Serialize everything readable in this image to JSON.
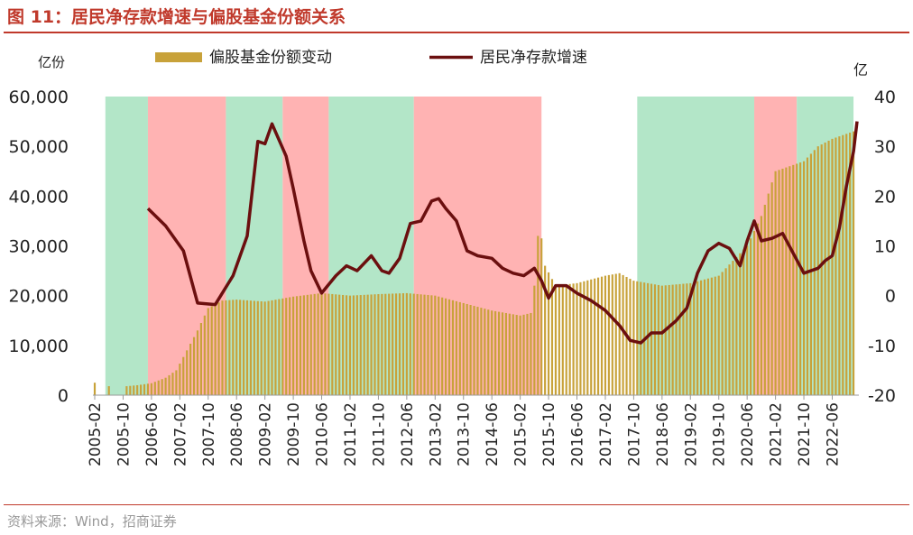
{
  "title": "图 11：居民净存款增速与偏股基金份额关系",
  "source": "资料来源：Wind，招商证券",
  "chart_data": {
    "type": "bar+line",
    "x_start": "2005-02",
    "x_end": "2023-01",
    "x_tick_labels": [
      "2005-02",
      "2005-10",
      "2006-06",
      "2007-02",
      "2007-10",
      "2008-06",
      "2009-02",
      "2009-10",
      "2010-06",
      "2011-02",
      "2011-10",
      "2012-06",
      "2013-02",
      "2013-10",
      "2014-06",
      "2015-02",
      "2015-10",
      "2016-06",
      "2017-02",
      "2017-10",
      "2018-06",
      "2019-02",
      "2019-10",
      "2020-06",
      "2021-02",
      "2021-10",
      "2022-06"
    ],
    "left_axis": {
      "label": "亿份",
      "ylim": [
        0,
        60000
      ],
      "ticks": [
        0,
        10000,
        20000,
        30000,
        40000,
        50000,
        60000
      ],
      "tick_labels": [
        "0",
        "10,000",
        "20,000",
        "30,000",
        "40,000",
        "50,000",
        "60,000"
      ]
    },
    "right_axis": {
      "label": "亿",
      "ylim": [
        -20,
        40
      ],
      "ticks": [
        -20,
        -10,
        0,
        10,
        20,
        30,
        40
      ],
      "tick_labels": [
        "-20",
        "-10",
        "0",
        "10",
        "20",
        "30",
        "40"
      ]
    },
    "legend": {
      "position": "top",
      "entries": [
        "偏股基金份额变动",
        "居民净存款增速"
      ]
    },
    "shaded_periods": [
      {
        "start": "2005-05",
        "end": "2006-05",
        "color": "#b3e6c8"
      },
      {
        "start": "2006-05",
        "end": "2008-03",
        "color": "#ffb3b3"
      },
      {
        "start": "2008-03",
        "end": "2009-07",
        "color": "#b3e6c8"
      },
      {
        "start": "2009-07",
        "end": "2010-08",
        "color": "#ffb3b3"
      },
      {
        "start": "2010-08",
        "end": "2012-08",
        "color": "#b3e6c8"
      },
      {
        "start": "2012-08",
        "end": "2015-08",
        "color": "#ffb3b3"
      },
      {
        "start": "2017-11",
        "end": "2020-08",
        "color": "#b3e6c8"
      },
      {
        "start": "2020-08",
        "end": "2021-08",
        "color": "#ffb3b3"
      },
      {
        "start": "2021-08",
        "end": "2022-12",
        "color": "#b3e6c8"
      }
    ],
    "bar_series": {
      "name": "偏股基金份额变动",
      "color": "#c8a23a",
      "anchors": [
        [
          "2005-02",
          2500
        ],
        [
          "2005-03",
          0
        ],
        [
          "2005-05",
          0
        ],
        [
          "2005-06",
          1800
        ],
        [
          "2005-07",
          0
        ],
        [
          "2005-10",
          0
        ],
        [
          "2005-11",
          1800
        ],
        [
          "2006-02",
          2000
        ],
        [
          "2006-06",
          2400
        ],
        [
          "2006-10",
          3500
        ],
        [
          "2007-01",
          5000
        ],
        [
          "2007-04",
          9000
        ],
        [
          "2007-07",
          13000
        ],
        [
          "2007-10",
          17500
        ],
        [
          "2008-02",
          19000
        ],
        [
          "2008-06",
          19200
        ],
        [
          "2009-02",
          18800
        ],
        [
          "2009-10",
          19800
        ],
        [
          "2010-06",
          20500
        ],
        [
          "2011-02",
          20000
        ],
        [
          "2011-10",
          20300
        ],
        [
          "2012-06",
          20500
        ],
        [
          "2013-02",
          20000
        ],
        [
          "2013-10",
          18500
        ],
        [
          "2014-06",
          17000
        ],
        [
          "2015-02",
          16000
        ],
        [
          "2015-05",
          16500
        ],
        [
          "2015-06",
          22000
        ],
        [
          "2015-07",
          32000
        ],
        [
          "2015-08",
          31500
        ],
        [
          "2015-09",
          26000
        ],
        [
          "2015-12",
          22000
        ],
        [
          "2016-06",
          22500
        ],
        [
          "2017-02",
          24000
        ],
        [
          "2017-06",
          24500
        ],
        [
          "2017-10",
          23000
        ],
        [
          "2018-06",
          22000
        ],
        [
          "2019-02",
          22500
        ],
        [
          "2019-10",
          24000
        ],
        [
          "2020-06",
          30000
        ],
        [
          "2020-10",
          36000
        ],
        [
          "2021-02",
          45000
        ],
        [
          "2021-10",
          47000
        ],
        [
          "2022-02",
          50000
        ],
        [
          "2022-06",
          51500
        ],
        [
          "2022-12",
          53000
        ]
      ]
    },
    "line_series": {
      "name": "居民净存款增速",
      "color": "#6b0f0f",
      "points": [
        [
          "2006-05",
          17.5
        ],
        [
          "2006-10",
          14.0
        ],
        [
          "2007-03",
          9.0
        ],
        [
          "2007-07",
          -1.5
        ],
        [
          "2007-12",
          -1.8
        ],
        [
          "2008-05",
          4.0
        ],
        [
          "2008-09",
          12.0
        ],
        [
          "2008-12",
          31.0
        ],
        [
          "2009-02",
          30.5
        ],
        [
          "2009-04",
          34.5
        ],
        [
          "2009-08",
          28.0
        ],
        [
          "2009-10",
          21.5
        ],
        [
          "2010-01",
          11.0
        ],
        [
          "2010-03",
          5.0
        ],
        [
          "2010-06",
          0.5
        ],
        [
          "2010-10",
          4.0
        ],
        [
          "2011-01",
          6.0
        ],
        [
          "2011-04",
          5.0
        ],
        [
          "2011-08",
          8.0
        ],
        [
          "2011-11",
          5.0
        ],
        [
          "2012-01",
          4.5
        ],
        [
          "2012-04",
          7.5
        ],
        [
          "2012-07",
          14.5
        ],
        [
          "2012-10",
          15.0
        ],
        [
          "2013-01",
          19.0
        ],
        [
          "2013-03",
          19.5
        ],
        [
          "2013-05",
          17.5
        ],
        [
          "2013-08",
          15.0
        ],
        [
          "2013-11",
          9.0
        ],
        [
          "2014-02",
          8.0
        ],
        [
          "2014-06",
          7.5
        ],
        [
          "2014-09",
          5.5
        ],
        [
          "2014-12",
          4.5
        ],
        [
          "2015-03",
          4.0
        ],
        [
          "2015-06",
          5.5
        ],
        [
          "2015-08",
          3.0
        ],
        [
          "2015-10",
          -0.5
        ],
        [
          "2015-12",
          2.0
        ],
        [
          "2016-03",
          2.0
        ],
        [
          "2016-06",
          0.5
        ],
        [
          "2016-10",
          -1.0
        ],
        [
          "2017-02",
          -3.0
        ],
        [
          "2017-06",
          -6.0
        ],
        [
          "2017-09",
          -9.0
        ],
        [
          "2017-12",
          -9.5
        ],
        [
          "2018-03",
          -7.5
        ],
        [
          "2018-06",
          -7.5
        ],
        [
          "2018-10",
          -5.0
        ],
        [
          "2019-01",
          -2.5
        ],
        [
          "2019-04",
          4.5
        ],
        [
          "2019-07",
          9.0
        ],
        [
          "2019-10",
          10.5
        ],
        [
          "2020-01",
          9.5
        ],
        [
          "2020-04",
          6.0
        ],
        [
          "2020-06",
          11.0
        ],
        [
          "2020-08",
          15.0
        ],
        [
          "2020-10",
          11.0
        ],
        [
          "2021-01",
          11.5
        ],
        [
          "2021-04",
          12.5
        ],
        [
          "2021-07",
          8.5
        ],
        [
          "2021-10",
          4.5
        ],
        [
          "2022-02",
          5.5
        ],
        [
          "2022-04",
          7.0
        ],
        [
          "2022-06",
          8.0
        ],
        [
          "2022-08",
          13.5
        ],
        [
          "2022-10",
          22.0
        ],
        [
          "2022-12",
          29.0
        ],
        [
          "2023-01",
          35.0
        ]
      ]
    }
  }
}
